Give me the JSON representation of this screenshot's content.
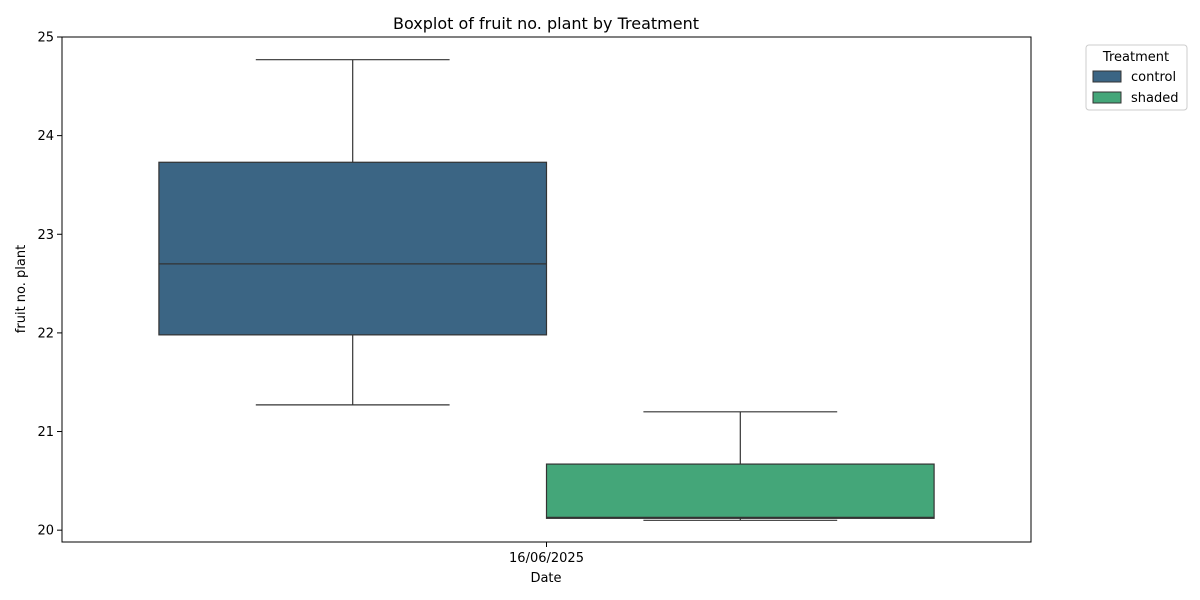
{
  "chart_data": {
    "type": "box",
    "title": "Boxplot of fruit no. plant by Treatment",
    "xlabel": "Date",
    "ylabel": "fruit no. plant",
    "categories": [
      "16/06/2025"
    ],
    "ylim": [
      19.88,
      25.0
    ],
    "yticks": [
      20,
      21,
      22,
      23,
      24,
      25
    ],
    "grid": false,
    "legend": {
      "title": "Treatment",
      "placement": "outside-top-right",
      "entries": [
        {
          "label": "control",
          "color": "#3b6584"
        },
        {
          "label": "shaded",
          "color": "#44a679"
        }
      ]
    },
    "series": [
      {
        "name": "control",
        "color": "#3b6584",
        "boxes": [
          {
            "category": "16/06/2025",
            "whislo": 21.27,
            "q1": 21.98,
            "med": 22.7,
            "q3": 23.73,
            "whishi": 24.77
          }
        ]
      },
      {
        "name": "shaded",
        "color": "#44a679",
        "boxes": [
          {
            "category": "16/06/2025",
            "whislo": 20.1,
            "q1": 20.12,
            "med": 20.13,
            "q3": 20.67,
            "whishi": 21.2
          }
        ]
      }
    ]
  }
}
